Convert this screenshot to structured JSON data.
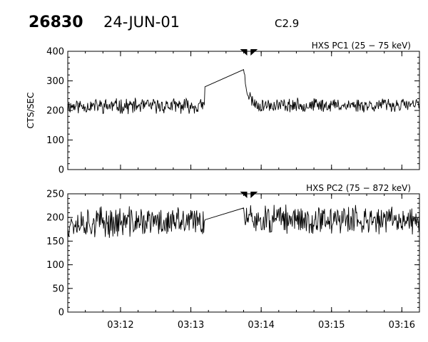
{
  "header": {
    "event_id": "26830",
    "date": "24-JUN-01",
    "flare_class": "C2.9"
  },
  "chart_data": [
    {
      "type": "line",
      "panel_title": "HXS PC1 (25 − 75 keV)",
      "ylabel": "CTS/SEC",
      "ylim": [
        0,
        400
      ],
      "yticks": [
        0,
        100,
        200,
        300,
        400
      ],
      "ytick_labels": [
        "0",
        "100",
        "200",
        "300",
        "400"
      ],
      "xlim_minutes": [
        11.25,
        16.25
      ],
      "xticks_minutes": [
        12,
        13,
        14,
        15,
        16
      ],
      "xtick_labels": [],
      "markers_minutes": [
        13.75,
        13.9
      ],
      "series": [
        {
          "gap": [
            13.2,
            13.75
          ],
          "segments": [
            {
              "start": 11.25,
              "end": 13.2,
              "base": 215,
              "noise": 22,
              "seed": 11,
              "end_value": 280
            },
            {
              "start": 13.75,
              "end": 16.25,
              "base": 218,
              "noise": 20,
              "seed": 23,
              "start_value": 338,
              "decay_to": 220,
              "decay_len": 0.18
            }
          ]
        }
      ]
    },
    {
      "type": "line",
      "panel_title": "HXS PC2 (75 − 872 keV)",
      "ylabel": "",
      "ylim": [
        0,
        250
      ],
      "yticks": [
        0,
        50,
        100,
        150,
        200,
        250
      ],
      "ytick_labels": [
        "0",
        "50",
        "100",
        "150",
        "200",
        "250"
      ],
      "xlim_minutes": [
        11.25,
        16.25
      ],
      "xticks_minutes": [
        12,
        13,
        14,
        15,
        16
      ],
      "xtick_labels": [
        "03:12",
        "03:13",
        "03:14",
        "03:15",
        "03:16"
      ],
      "markers_minutes": [
        13.75,
        13.9
      ],
      "series": [
        {
          "gap": [
            13.2,
            13.75
          ],
          "segments": [
            {
              "start": 11.25,
              "end": 13.2,
              "base": 190,
              "noise": 28,
              "seed": 37,
              "end_value": 195
            },
            {
              "start": 13.75,
              "end": 16.25,
              "base": 195,
              "noise": 26,
              "seed": 51,
              "start_value": 220
            }
          ]
        }
      ]
    }
  ]
}
